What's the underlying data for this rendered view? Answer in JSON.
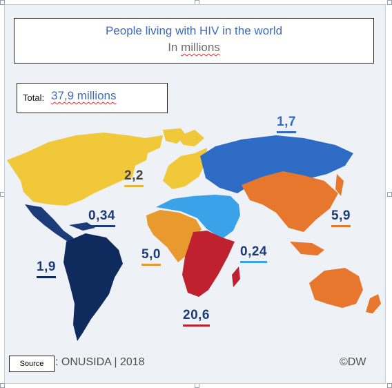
{
  "title": "People living with HIV in the world",
  "subtitle_prefix": "In",
  "subtitle_unit": "millions",
  "total": {
    "label": "Total:",
    "value": "37,9 millions"
  },
  "regions": [
    {
      "id": "north-america-western-central-europe",
      "value": "1,7",
      "color": "#e6b43a"
    },
    {
      "id": "eastern-europe-central-asia",
      "value": "2,2",
      "color": "#2e6bc4"
    },
    {
      "id": "caribbean",
      "value": "0,34",
      "color": "#1b3c78"
    },
    {
      "id": "middle-east-north-africa",
      "value": "0,24",
      "color": "#3aa2e8"
    },
    {
      "id": "asia-pacific",
      "value": "5,9",
      "color": "#e8772e"
    },
    {
      "id": "west-central-africa",
      "value": "5,0",
      "color": "#e89a2e"
    },
    {
      "id": "eastern-southern-africa",
      "value": "20,6",
      "color": "#c0212f"
    },
    {
      "id": "latin-america",
      "value": "1,9",
      "color": "#0f2a5c"
    }
  ],
  "source_label": "Source",
  "source_rest": ": ONUSIDA | 2018",
  "credit": "©DW"
}
